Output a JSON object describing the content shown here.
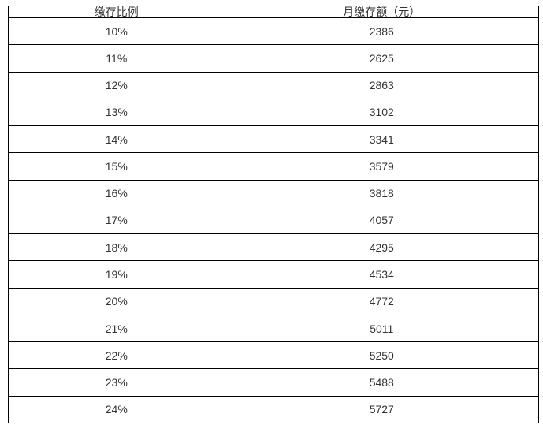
{
  "table": {
    "headers": [
      "缴存比例",
      "月缴存额（元）"
    ],
    "rows": [
      {
        "ratio": "10%",
        "amount": "2386"
      },
      {
        "ratio": "11%",
        "amount": "2625"
      },
      {
        "ratio": "12%",
        "amount": "2863"
      },
      {
        "ratio": "13%",
        "amount": "3102"
      },
      {
        "ratio": "14%",
        "amount": "3341"
      },
      {
        "ratio": "15%",
        "amount": "3579"
      },
      {
        "ratio": "16%",
        "amount": "3818"
      },
      {
        "ratio": "17%",
        "amount": "4057"
      },
      {
        "ratio": "18%",
        "amount": "4295"
      },
      {
        "ratio": "19%",
        "amount": "4534"
      },
      {
        "ratio": "20%",
        "amount": "4772"
      },
      {
        "ratio": "21%",
        "amount": "5011"
      },
      {
        "ratio": "22%",
        "amount": "5250"
      },
      {
        "ratio": "23%",
        "amount": "5488"
      },
      {
        "ratio": "24%",
        "amount": "5727"
      }
    ],
    "colors": {
      "border": "#000000",
      "text": "#333333",
      "background": "#ffffff"
    }
  },
  "chart_data": {
    "type": "table",
    "title": "",
    "columns": [
      "缴存比例",
      "月缴存额（元）"
    ],
    "categories": [
      "10%",
      "11%",
      "12%",
      "13%",
      "14%",
      "15%",
      "16%",
      "17%",
      "18%",
      "19%",
      "20%",
      "21%",
      "22%",
      "23%",
      "24%"
    ],
    "values": [
      2386,
      2625,
      2863,
      3102,
      3341,
      3579,
      3818,
      4057,
      4295,
      4534,
      4772,
      5011,
      5250,
      5488,
      5727
    ]
  }
}
